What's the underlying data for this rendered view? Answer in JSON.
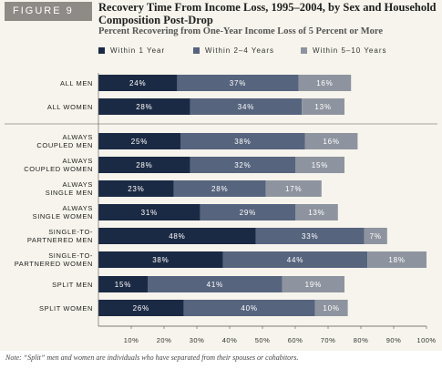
{
  "figure_label": "FIGURE 9",
  "title": "Recovery Time From Income Loss, 1995–2004, by Sex and Household Composition Post-Drop",
  "subtitle": "Percent Recovering from One-Year Income Loss of 5 Percent or More",
  "note": "Note: “Split” men and women are individuals who have separated from their spouses or cohabitors.",
  "colors": {
    "panel": "#f6f4ec",
    "badge": "#8e8b86",
    "series": [
      "#1b2a44",
      "#56647e",
      "#8e949f"
    ]
  },
  "chart_data": {
    "type": "bar",
    "orientation": "horizontal",
    "stacked": true,
    "categories": [
      "ALL MEN",
      "ALL WOMEN",
      "ALWAYS COUPLED MEN",
      "ALWAYS COUPLED WOMEN",
      "ALWAYS SINGLE MEN",
      "ALWAYS SINGLE WOMEN",
      "SINGLE-TO- PARTNERED MEN",
      "SINGLE-TO- PARTNERED WOMEN",
      "SPLIT MEN",
      "SPLIT WOMEN"
    ],
    "series": [
      {
        "name": "Within 1 Year",
        "values": [
          24,
          28,
          25,
          28,
          23,
          31,
          48,
          38,
          15,
          26
        ]
      },
      {
        "name": "Within 2–4 Years",
        "values": [
          37,
          34,
          38,
          32,
          28,
          29,
          33,
          44,
          41,
          40
        ]
      },
      {
        "name": "Within 5–10 Years",
        "values": [
          16,
          13,
          16,
          15,
          17,
          13,
          7,
          18,
          19,
          10
        ]
      }
    ],
    "data_labels": [
      [
        "24%",
        "28%",
        "25%",
        "28%",
        "23%",
        "31%",
        "48%",
        "38%",
        "15%",
        "26%"
      ],
      [
        "37%",
        "34%",
        "38%",
        "32%",
        "28%",
        "29%",
        "33%",
        "44%",
        "41%",
        "40%"
      ],
      [
        "16%",
        "13%",
        "16%",
        "15%",
        "17%",
        "13%",
        "7%",
        "18%",
        "19%",
        "10%"
      ]
    ],
    "x_ticks": [
      "10%",
      "20%",
      "30%",
      "40%",
      "50%",
      "60%",
      "70%",
      "80%",
      "90%",
      "100%"
    ],
    "xlim": [
      0,
      100
    ],
    "legend_position": "top",
    "grid": false,
    "xlabel": "",
    "ylabel": ""
  }
}
